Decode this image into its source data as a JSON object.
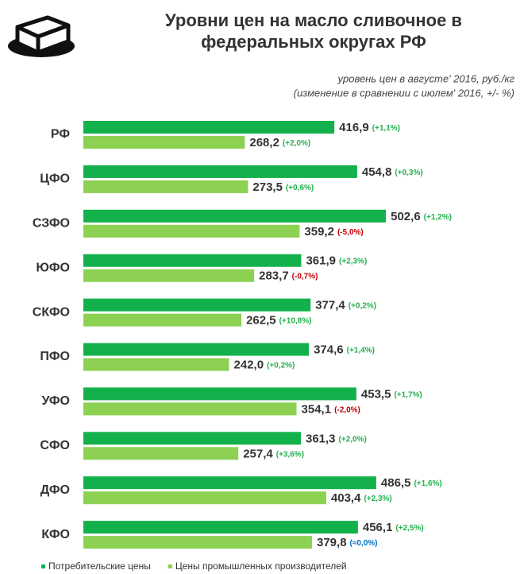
{
  "chart_data": {
    "type": "bar",
    "orientation": "horizontal",
    "title": "Уровни цен на масло сливочное в федеральных округах РФ",
    "subtitle_lines": [
      "уровень цен в августе' 2016, руб./кг",
      "(изменение в сравнении с июлем' 2016, +/- %)"
    ],
    "categories": [
      "РФ",
      "ЦФО",
      "СЗФО",
      "ЮФО",
      "СКФО",
      "ПФО",
      "УФО",
      "СФО",
      "ДФО",
      "КФО"
    ],
    "xlim": [
      0,
      600
    ],
    "legend": "bottom",
    "series": [
      {
        "name": "Потребительские цены",
        "color": "#13b14b",
        "values": [
          416.9,
          454.8,
          502.6,
          361.9,
          377.4,
          374.6,
          453.5,
          361.3,
          486.5,
          456.1
        ],
        "value_labels": [
          "416,9",
          "454,8",
          "502,6",
          "361,9",
          "377,4",
          "374,6",
          "453,5",
          "361,3",
          "486,5",
          "456,1"
        ],
        "changes": [
          "(+1,1%)",
          "(+0,3%)",
          "(+1,2%)",
          "(+2,3%)",
          "(+0,2%)",
          "(+1,4%)",
          "(+1,7%)",
          "(+2,0%)",
          "(+1,6%)",
          "(+2,5%)"
        ]
      },
      {
        "name": "Цены промышленных производителей",
        "color": "#8cd152",
        "values": [
          268.2,
          273.5,
          359.2,
          283.7,
          262.5,
          242.0,
          354.1,
          257.4,
          403.4,
          379.8
        ],
        "value_labels": [
          "268,2",
          "273,5",
          "359,2",
          "283,7",
          "262,5",
          "242,0",
          "354,1",
          "257,4",
          "403,4",
          "379,8"
        ],
        "changes": [
          "(+2,0%)",
          "(+0,6%)",
          "(-5,0%)",
          "(-0,7%)",
          "(+10,8%)",
          "(+0,2%)",
          "(-2,0%)",
          "(+3,6%)",
          "(+2,3%)",
          "(≈0,0%)"
        ]
      }
    ]
  }
}
